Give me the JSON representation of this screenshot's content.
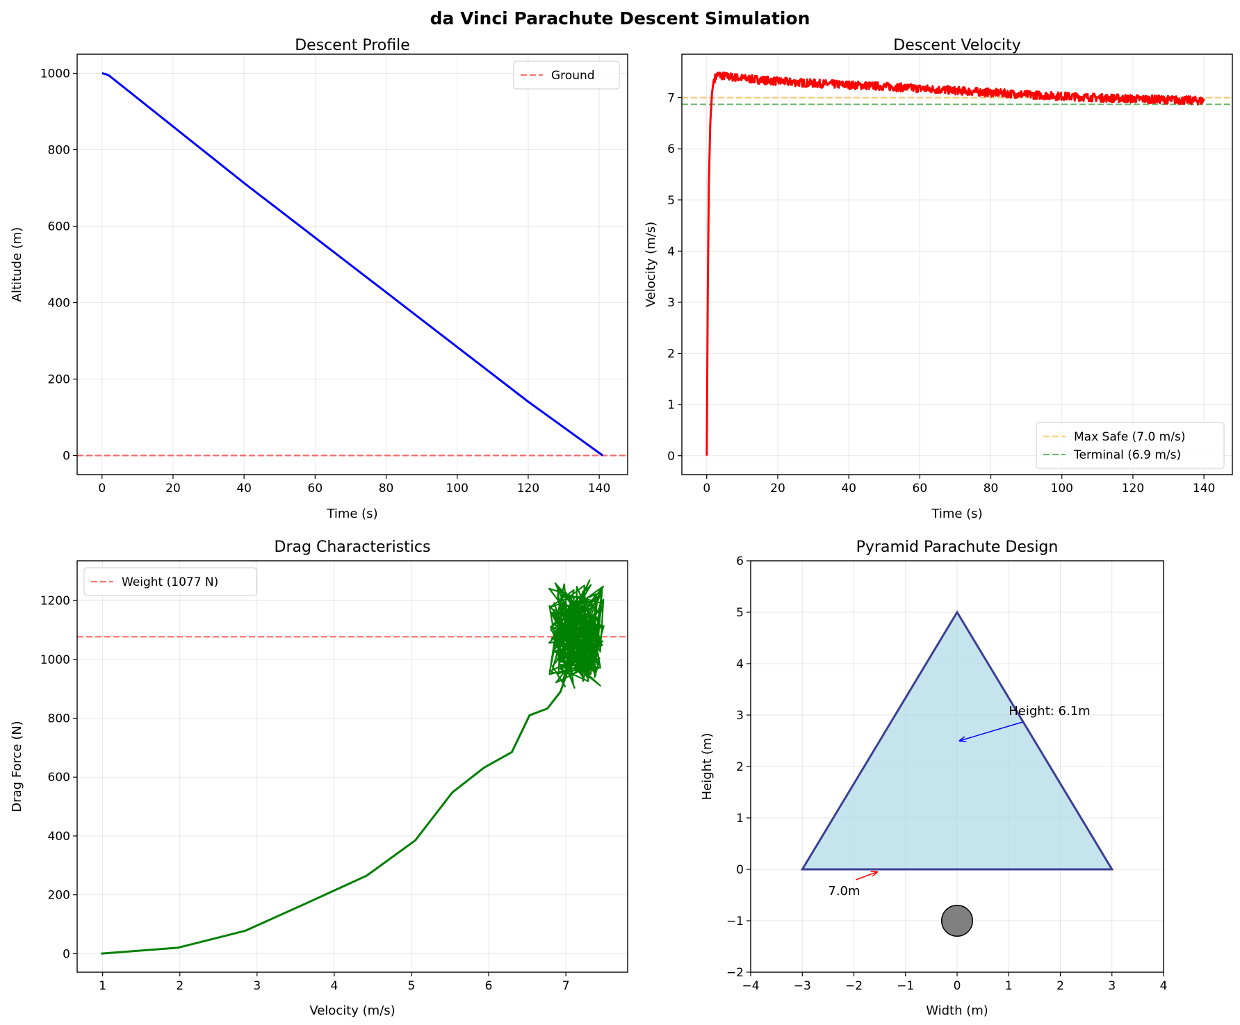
{
  "figure": {
    "title": "da Vinci Parachute Descent Simulation"
  },
  "chart_data": [
    {
      "id": "descent-profile",
      "type": "line",
      "title": "Descent Profile",
      "xlabel": "Time (s)",
      "ylabel": "Altitude (m)",
      "xlim": [
        -7,
        148
      ],
      "ylim": [
        -50,
        1050
      ],
      "xticks": [
        0,
        20,
        40,
        60,
        80,
        100,
        120,
        140
      ],
      "yticks": [
        0,
        200,
        400,
        600,
        800,
        1000
      ],
      "grid": true,
      "legend_position": "upper-right",
      "series": [
        {
          "name": "",
          "color": "#0000ff",
          "x": [
            0,
            1,
            2,
            40,
            80,
            120,
            141
          ],
          "y": [
            1000,
            998,
            994,
            713,
            427,
            141,
            0
          ]
        }
      ],
      "reference_lines": [
        {
          "name": "Ground",
          "axis": "y",
          "value": 0,
          "color": "#ff0000",
          "dash": true
        }
      ]
    },
    {
      "id": "descent-velocity",
      "type": "line",
      "title": "Descent Velocity",
      "xlabel": "Time (s)",
      "ylabel": "Velocity (m/s)",
      "xlim": [
        -7,
        148
      ],
      "ylim": [
        -0.37,
        7.85
      ],
      "xticks": [
        0,
        20,
        40,
        60,
        80,
        100,
        120,
        140
      ],
      "yticks": [
        0,
        1,
        2,
        3,
        4,
        5,
        6,
        7
      ],
      "grid": true,
      "legend_position": "lower-right",
      "series": [
        {
          "name": "",
          "color": "#ff0000",
          "noise": 0.05,
          "x": [
            0,
            0.3,
            0.6,
            1.0,
            1.5,
            2.0,
            3,
            5,
            10,
            20,
            30,
            40,
            50,
            60,
            70,
            80,
            90,
            100,
            110,
            120,
            130,
            140
          ],
          "y": [
            0,
            3.2,
            5.3,
            6.5,
            7.1,
            7.35,
            7.45,
            7.42,
            7.38,
            7.32,
            7.28,
            7.25,
            7.22,
            7.18,
            7.14,
            7.1,
            7.06,
            7.03,
            7.0,
            6.98,
            6.96,
            6.94
          ]
        }
      ],
      "reference_lines": [
        {
          "name": "Max Safe (7.0 m/s)",
          "axis": "y",
          "value": 7.0,
          "color": "#ffa500",
          "dash": true
        },
        {
          "name": "Terminal (6.9 m/s)",
          "axis": "y",
          "value": 6.87,
          "color": "#008000",
          "dash": true
        }
      ]
    },
    {
      "id": "drag-characteristics",
      "type": "line",
      "title": "Drag Characteristics",
      "xlabel": "Velocity (m/s)",
      "ylabel": "Drag Force (N)",
      "xlim": [
        0.67,
        7.8
      ],
      "ylim": [
        -63,
        1335
      ],
      "xticks": [
        1,
        2,
        3,
        4,
        5,
        6,
        7
      ],
      "yticks": [
        0,
        200,
        400,
        600,
        800,
        1000,
        1200
      ],
      "grid": true,
      "legend_position": "upper-left",
      "series": [
        {
          "name": "",
          "color": "#008000",
          "x": [
            0.98,
            1.97,
            2.85,
            3.67,
            4.42,
            5.05,
            5.53,
            5.94,
            6.3,
            6.53,
            6.76,
            6.93,
            7.05
          ],
          "y": [
            0,
            20,
            78,
            175,
            265,
            385,
            548,
            632,
            685,
            810,
            833,
            890,
            980
          ]
        }
      ],
      "cluster": {
        "x_range": [
          6.78,
          7.5
        ],
        "y_range": [
          890,
          1270
        ],
        "color": "#008000"
      },
      "reference_lines": [
        {
          "name": "Weight (1077 N)",
          "axis": "y",
          "value": 1077,
          "color": "#ff0000",
          "dash": true
        }
      ]
    },
    {
      "id": "pyramid-design",
      "type": "diagram",
      "title": "Pyramid Parachute Design",
      "xlabel": "Width (m)",
      "ylabel": "Height (m)",
      "xlim": [
        -4,
        4
      ],
      "ylim": [
        -2,
        6
      ],
      "xticks": [
        -4,
        -3,
        -2,
        -1,
        0,
        1,
        2,
        3,
        4
      ],
      "yticks": [
        -2,
        -1,
        0,
        1,
        2,
        3,
        4,
        5,
        6
      ],
      "grid": true,
      "triangle": {
        "x": [
          -3,
          0,
          3
        ],
        "y": [
          0,
          5,
          0
        ],
        "fill": "#add8e6",
        "stroke": "#3b3f96"
      },
      "payload": {
        "cx": 0,
        "cy": -1,
        "r": 0.3,
        "fill": "#808080"
      },
      "annotations": [
        {
          "text": "Height: 6.1m",
          "x": 1.0,
          "y": 3.0,
          "arrow_to_x": 0.05,
          "arrow_to_y": 2.5,
          "color": "#0000ff"
        },
        {
          "text": "7.0m",
          "x": -2.5,
          "y": -0.5,
          "arrow_to_x": -1.55,
          "arrow_to_y": -0.05,
          "color": "#ff0000"
        }
      ]
    }
  ]
}
